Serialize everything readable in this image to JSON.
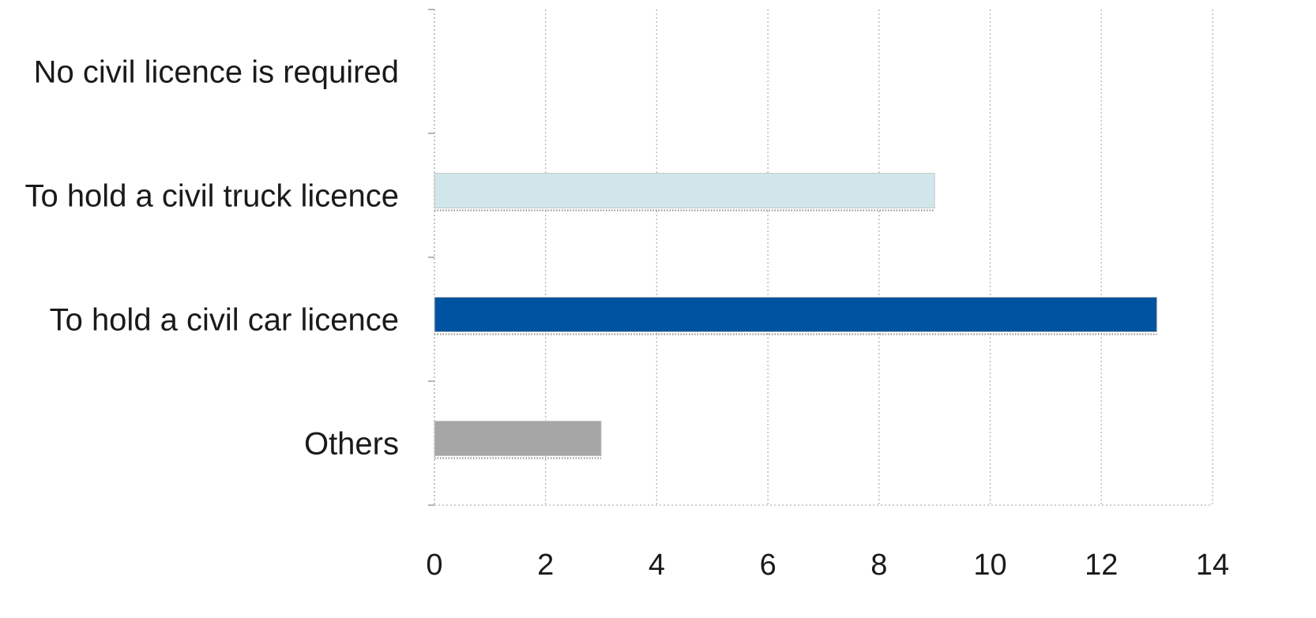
{
  "chart_data": {
    "type": "bar",
    "orientation": "horizontal",
    "title": "",
    "xlabel": "",
    "ylabel": "",
    "categories": [
      "No civil licence is required",
      "To hold a civil truck licence",
      "To hold a civil car licence",
      "Others"
    ],
    "values": [
      0,
      9,
      13,
      3
    ],
    "bar_colors": [
      "#d0e6ea",
      "#d0e6ea",
      "#0053a0",
      "#a6a6a6"
    ],
    "xlim": [
      0,
      14
    ],
    "x_ticks": [
      0,
      2,
      4,
      6,
      8,
      10,
      12,
      14
    ],
    "grid": true,
    "grid_color": "#bdbdbd",
    "legend": "none"
  }
}
